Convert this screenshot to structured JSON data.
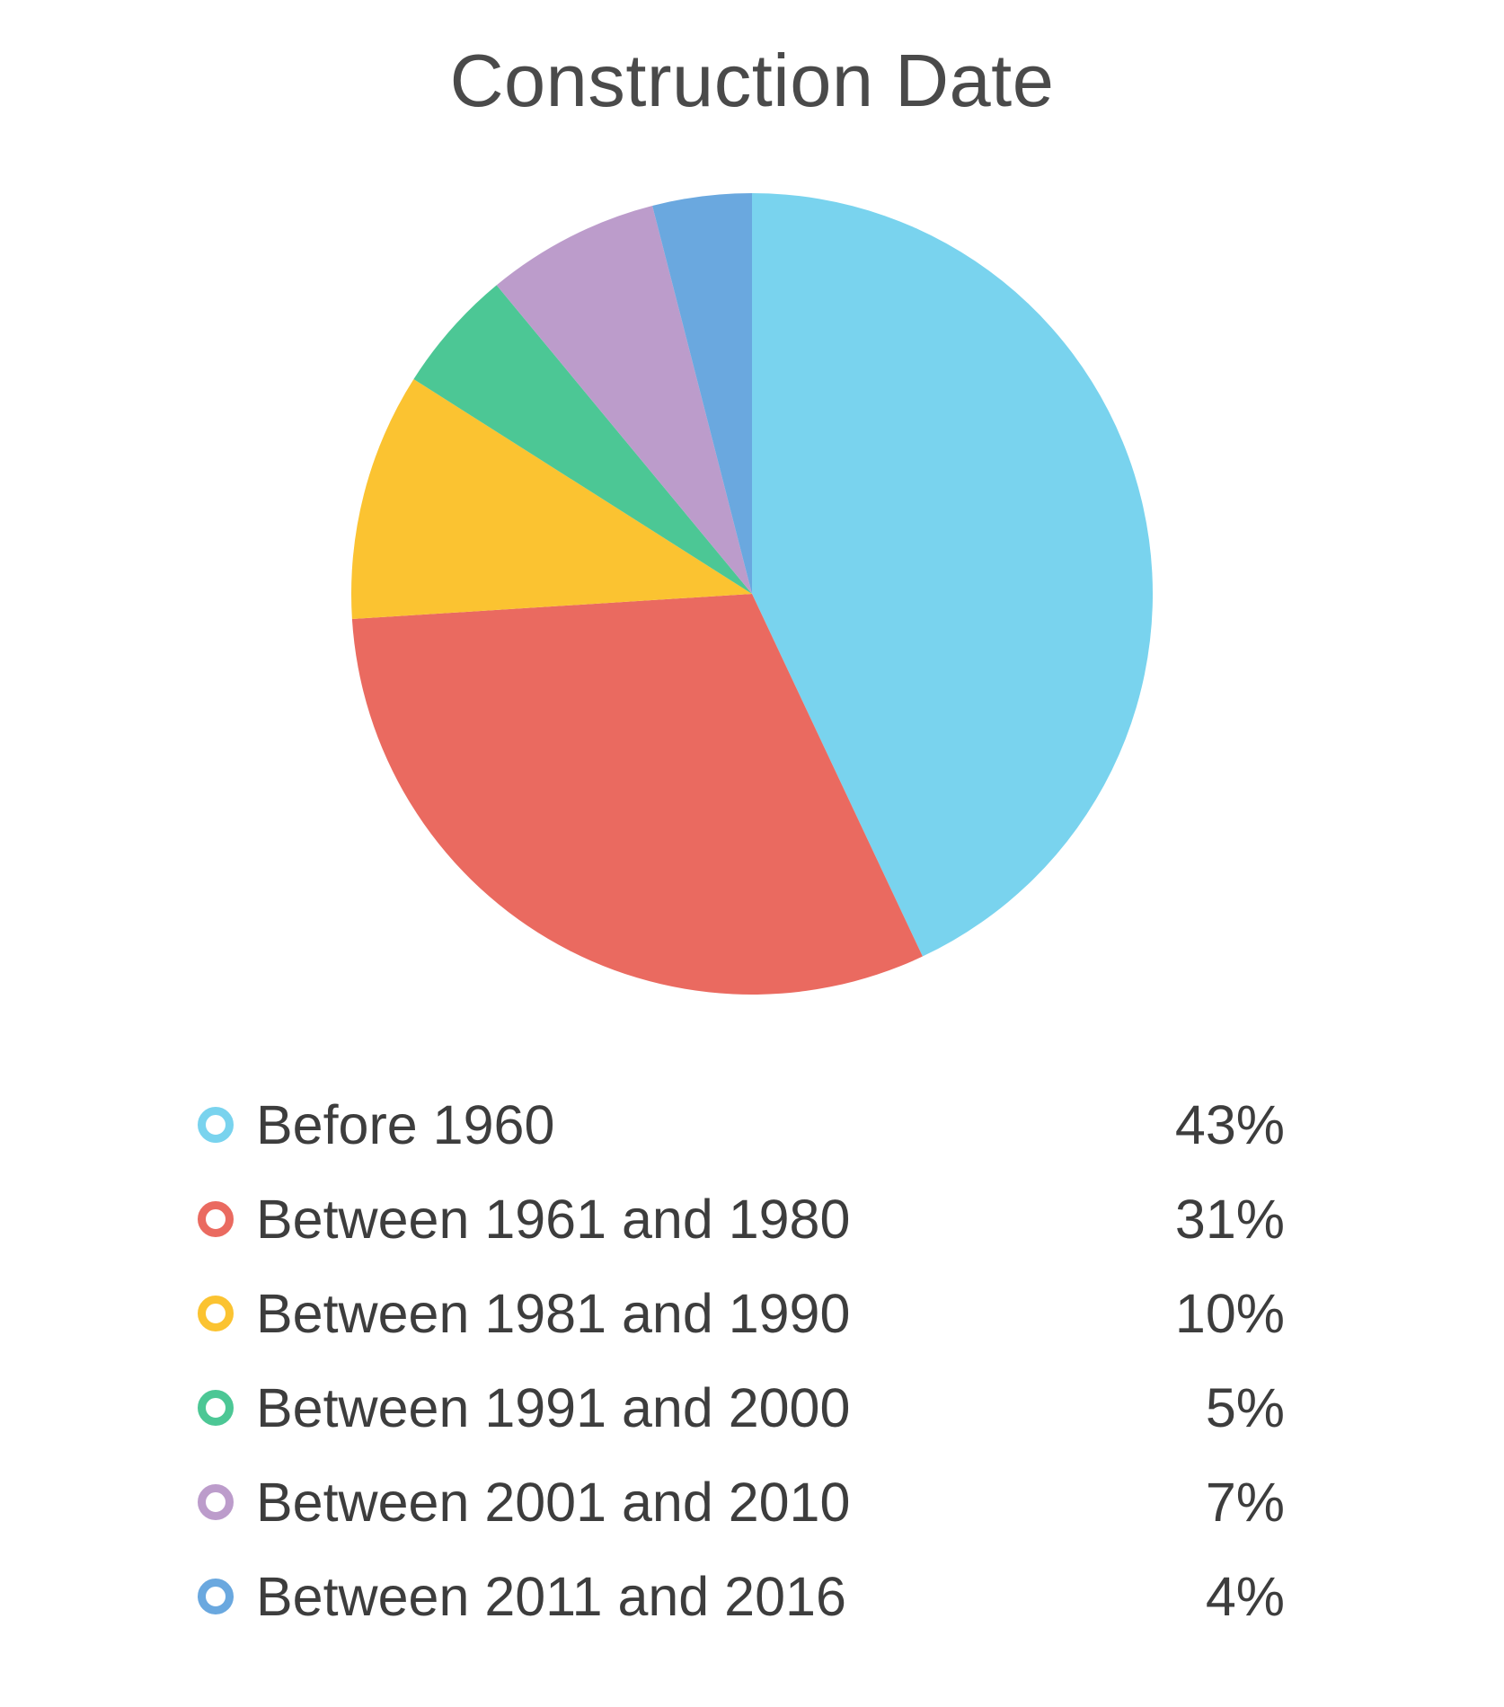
{
  "chart_data": {
    "type": "pie",
    "title": "Construction Date",
    "series": [
      {
        "name": "Before 1960",
        "value": 43,
        "label": "43%",
        "color": "#79d3ee"
      },
      {
        "name": "Between 1961 and 1980",
        "value": 31,
        "label": "31%",
        "color": "#ea6a60"
      },
      {
        "name": "Between 1981 and 1990",
        "value": 10,
        "label": "10%",
        "color": "#fbc331"
      },
      {
        "name": "Between 1991 and 2000",
        "value": 5,
        "label": "5%",
        "color": "#4cc795"
      },
      {
        "name": "Between 2001 and 2010",
        "value": 7,
        "label": "7%",
        "color": "#bc9ccb"
      },
      {
        "name": "Between 2011 and 2016",
        "value": 4,
        "label": "4%",
        "color": "#6aa8df"
      }
    ],
    "legend_position": "bottom"
  }
}
